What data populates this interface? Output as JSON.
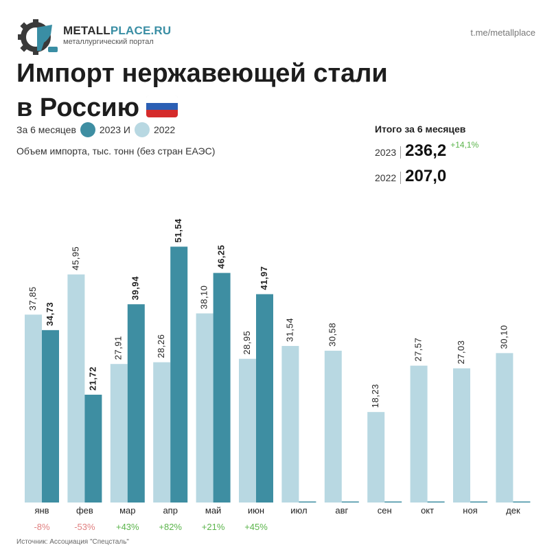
{
  "header": {
    "brand_main": "METALL",
    "brand_accent": "PLACE.RU",
    "brand_sub": "металлургический портал",
    "telegram": "t.me/metallplace",
    "title_line1": "Импорт нержавеющей стали",
    "title_line2": "в Россию"
  },
  "legend": {
    "prefix": "За 6 месяцев",
    "item_2023": "2023 И",
    "item_2022": "2022"
  },
  "subtitle": "Объем импорта, тыс. тонн (без стран ЕАЭС)",
  "totals": {
    "title": "Итого за 6 месяцев",
    "rows": [
      {
        "year": "2023",
        "value": "236,2",
        "change": "+14,1%"
      },
      {
        "year": "2022",
        "value": "207,0",
        "change": ""
      }
    ]
  },
  "colors": {
    "c2023": "#3e8ea2",
    "c2022": "#b8d8e2",
    "positive": "#5ab44a",
    "negative": "#e07f7f"
  },
  "chart_data": {
    "type": "bar",
    "categories": [
      "янв",
      "фев",
      "мар",
      "апр",
      "май",
      "июн",
      "июл",
      "авг",
      "сен",
      "окт",
      "ноя",
      "дек"
    ],
    "series": [
      {
        "name": "2022",
        "values": [
          37.85,
          45.95,
          27.91,
          28.26,
          38.1,
          28.95,
          31.54,
          30.58,
          18.23,
          27.57,
          27.03,
          30.1
        ],
        "labels": [
          "37,85",
          "45,95",
          "27,91",
          "28,26",
          "38,10",
          "28,95",
          "31,54",
          "30,58",
          "18,23",
          "27,57",
          "27,03",
          "30,10"
        ]
      },
      {
        "name": "2023",
        "values": [
          34.73,
          21.72,
          39.94,
          51.54,
          46.25,
          41.97,
          null,
          null,
          null,
          null,
          null,
          null
        ],
        "labels": [
          "34,73",
          "21,72",
          "39,94",
          "51,54",
          "46,25",
          "41,97",
          "",
          "",
          "",
          "",
          "",
          ""
        ]
      }
    ],
    "changes": [
      "-8%",
      "-53%",
      "+43%",
      "+82%",
      "+21%",
      "+45%",
      "",
      "",
      "",
      "",
      "",
      ""
    ],
    "ylim": [
      0,
      52
    ],
    "grid": false,
    "legend": "top-left"
  },
  "source": "Источник: Ассоциация \"Спецсталь\""
}
